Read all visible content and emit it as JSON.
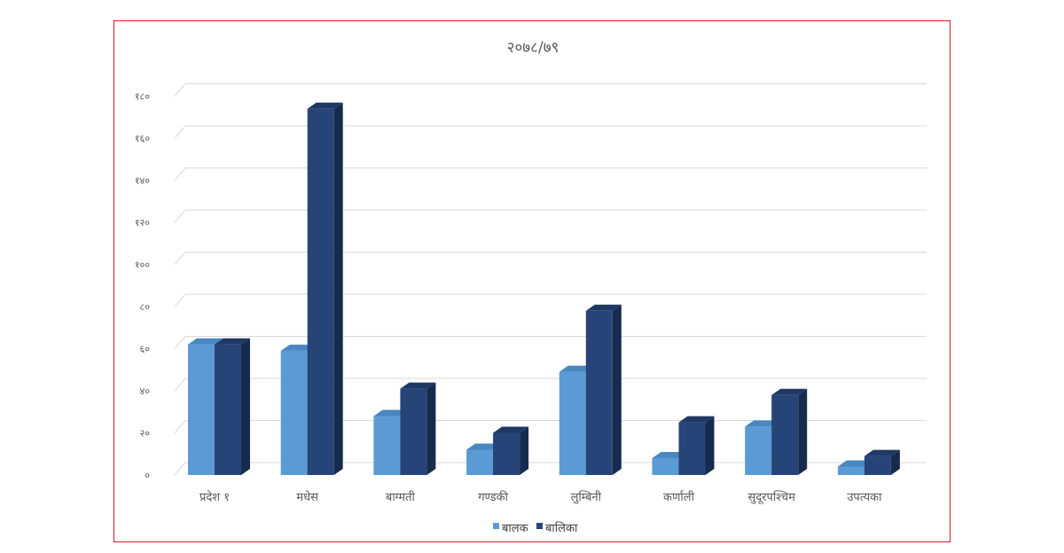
{
  "colors": {
    "frame_border": "#e0141e",
    "grid": "#d9d9d9",
    "text": "#595959"
  },
  "chart_data": {
    "type": "bar",
    "title": "२०७८/७९",
    "xlabel": "",
    "ylabel": "",
    "ylim": [
      0,
      180
    ],
    "yticks": [
      {
        "value": 0,
        "label": "०"
      },
      {
        "value": 20,
        "label": "२०"
      },
      {
        "value": 40,
        "label": "४०"
      },
      {
        "value": 60,
        "label": "६०"
      },
      {
        "value": 80,
        "label": "८०"
      },
      {
        "value": 100,
        "label": "१००"
      },
      {
        "value": 120,
        "label": "१२०"
      },
      {
        "value": 140,
        "label": "१४०"
      },
      {
        "value": 160,
        "label": "१६०"
      },
      {
        "value": 180,
        "label": "१८०"
      }
    ],
    "grid": true,
    "legend_position": "bottom",
    "categories": [
      "प्रदेश १",
      "मधेस",
      "बाग्मती",
      "गण्डकी",
      "लुम्बिनी",
      "कर्णाली",
      "सुदूरपश्चिम",
      "उपत्यका"
    ],
    "series": [
      {
        "name": "बालक",
        "color": "#5b9bd5",
        "top_color": "#4a86c0",
        "side_color": "#3f76ad",
        "values": [
          62,
          59,
          28,
          12,
          49,
          8,
          23,
          4
        ]
      },
      {
        "name": "बालिका",
        "color": "#264478",
        "top_color": "#1f3864",
        "side_color": "#172b4f",
        "values": [
          62,
          174,
          41,
          20,
          78,
          25,
          38,
          9
        ]
      }
    ]
  }
}
